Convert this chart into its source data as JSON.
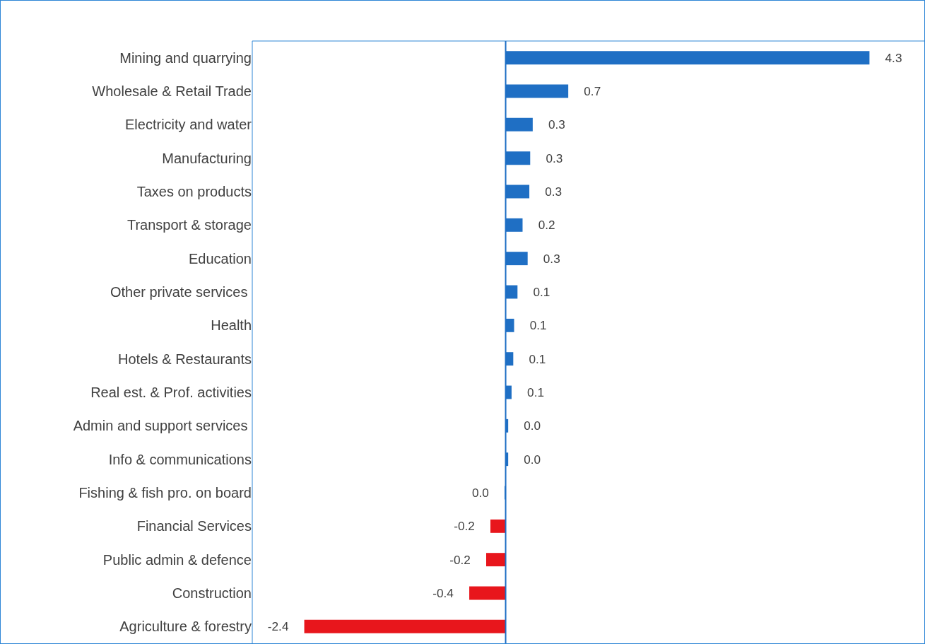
{
  "chart_data": {
    "type": "bar",
    "orientation": "horizontal",
    "categories": [
      "Mining and quarrying",
      "Wholesale & Retail Trade",
      "Electricity and water",
      "Manufacturing",
      "Taxes on products",
      "Transport & storage",
      "Education",
      "Other private services ",
      "Health",
      "Hotels & Restaurants",
      "Real est. & Prof. activities",
      "Admin and support services ",
      "Info & communications",
      "Fishing & fish pro. on board",
      "Financial Services",
      "Public admin & defence",
      "Construction",
      "Agriculture & forestry"
    ],
    "values": [
      4.3,
      0.74,
      0.32,
      0.29,
      0.28,
      0.2,
      0.26,
      0.14,
      0.1,
      0.09,
      0.07,
      0.03,
      0.03,
      -0.01,
      -0.18,
      -0.23,
      -0.43,
      -2.38
    ],
    "value_labels": [
      "4.3",
      "0.7",
      "0.3",
      "0.3",
      "0.3",
      "0.2",
      "0.3",
      "0.1",
      "0.1",
      "0.1",
      "0.1",
      "0.0",
      "0.0",
      "0.0",
      "-0.2",
      "-0.2",
      "-0.4",
      "-2.4"
    ],
    "colors": [
      "#1f6fc4",
      "#1f6fc4",
      "#1f6fc4",
      "#1f6fc4",
      "#1f6fc4",
      "#1f6fc4",
      "#1f6fc4",
      "#1f6fc4",
      "#1f6fc4",
      "#1f6fc4",
      "#1f6fc4",
      "#1f6fc4",
      "#1f6fc4",
      "#1f6fc4",
      "#e8161c",
      "#e8161c",
      "#e8161c",
      "#e8161c"
    ],
    "ref_lines": [
      {
        "axis": "x",
        "value": 0,
        "color": "#1f6fc4"
      }
    ]
  }
}
